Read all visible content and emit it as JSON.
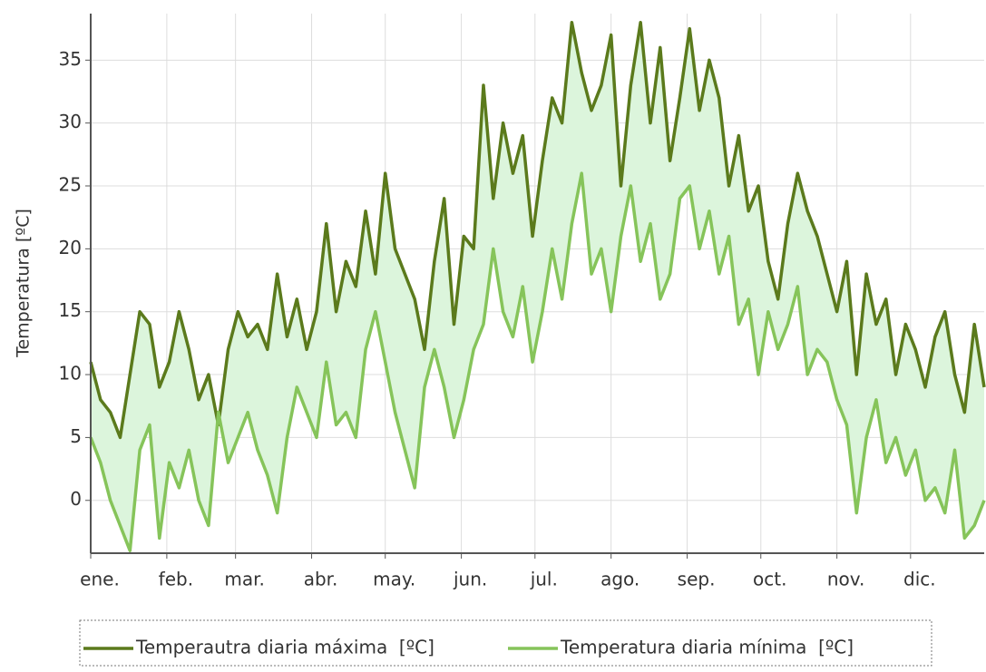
{
  "chart_data": {
    "type": "line",
    "ylabel": "Temperatura [ºC]",
    "x": [
      1,
      5,
      9,
      13,
      17,
      21,
      25,
      29,
      33,
      37,
      41,
      45,
      49,
      53,
      57,
      61,
      65,
      69,
      73,
      77,
      81,
      85,
      89,
      93,
      97,
      101,
      105,
      109,
      113,
      117,
      121,
      125,
      129,
      133,
      137,
      141,
      145,
      149,
      153,
      157,
      161,
      165,
      169,
      173,
      177,
      181,
      185,
      189,
      193,
      197,
      201,
      205,
      209,
      213,
      217,
      221,
      225,
      229,
      233,
      237,
      241,
      245,
      249,
      253,
      257,
      261,
      265,
      269,
      273,
      277,
      281,
      285,
      289,
      293,
      297,
      301,
      305,
      309,
      313,
      317,
      321,
      325,
      329,
      333,
      337,
      341,
      345,
      349,
      353,
      357,
      361,
      365
    ],
    "series": [
      {
        "name": "Temperautra diaria máxima  [ºC]",
        "color": "#5b7a1c",
        "values": [
          11,
          8,
          7,
          5,
          10,
          15,
          14,
          9,
          11,
          15,
          12,
          8,
          10,
          6,
          12,
          15,
          13,
          14,
          12,
          18,
          13,
          16,
          12,
          15,
          22,
          15,
          19,
          17,
          23,
          18,
          26,
          20,
          18,
          16,
          12,
          19,
          24,
          14,
          21,
          20,
          33,
          24,
          30,
          26,
          29,
          21,
          27,
          32,
          30,
          38,
          34,
          31,
          33,
          37,
          25,
          33,
          38,
          30,
          36,
          27,
          32,
          37.5,
          31,
          35,
          32,
          25,
          29,
          23,
          25,
          19,
          16,
          22,
          26,
          23,
          21,
          18,
          15,
          19,
          10,
          18,
          14,
          16,
          10,
          14,
          12,
          9,
          13,
          15,
          10,
          7,
          14,
          9
        ]
      },
      {
        "name": "Temperatura diaria mínima  [ºC]",
        "color": "#86c45a",
        "values": [
          5,
          3,
          0,
          -2,
          -4,
          4,
          6,
          -3,
          3,
          1,
          4,
          0,
          -2,
          7,
          3,
          5,
          7,
          4,
          2,
          -1,
          5,
          9,
          7,
          5,
          11,
          6,
          7,
          5,
          12,
          15,
          11,
          7,
          4,
          1,
          9,
          12,
          9,
          5,
          8,
          12,
          14,
          20,
          15,
          13,
          17,
          11,
          15,
          20,
          16,
          22,
          26,
          18,
          20,
          15,
          21,
          25,
          19,
          22,
          16,
          18,
          24,
          25,
          20,
          23,
          18,
          21,
          14,
          16,
          10,
          15,
          12,
          14,
          17,
          10,
          12,
          11,
          8,
          6,
          -1,
          5,
          8,
          3,
          5,
          2,
          4,
          0,
          1,
          -1,
          4,
          -3,
          -2,
          0
        ]
      }
    ],
    "fill_between": "#dcf5dc",
    "xlim": [
      1,
      365
    ],
    "xticks": [
      {
        "value": 1,
        "label": "ene."
      },
      {
        "value": 32,
        "label": "feb."
      },
      {
        "value": 60,
        "label": "mar."
      },
      {
        "value": 91,
        "label": "abr."
      },
      {
        "value": 121,
        "label": "may."
      },
      {
        "value": 152,
        "label": "jun."
      },
      {
        "value": 182,
        "label": "jul."
      },
      {
        "value": 213,
        "label": "ago."
      },
      {
        "value": 244,
        "label": "sep."
      },
      {
        "value": 274,
        "label": "oct."
      },
      {
        "value": 305,
        "label": "nov."
      },
      {
        "value": 335,
        "label": "dic."
      }
    ],
    "ylim": [
      -4.2,
      38.7
    ],
    "yticks": [
      0,
      5,
      10,
      15,
      20,
      25,
      30,
      35
    ],
    "grid": true,
    "legend": "bottom"
  }
}
